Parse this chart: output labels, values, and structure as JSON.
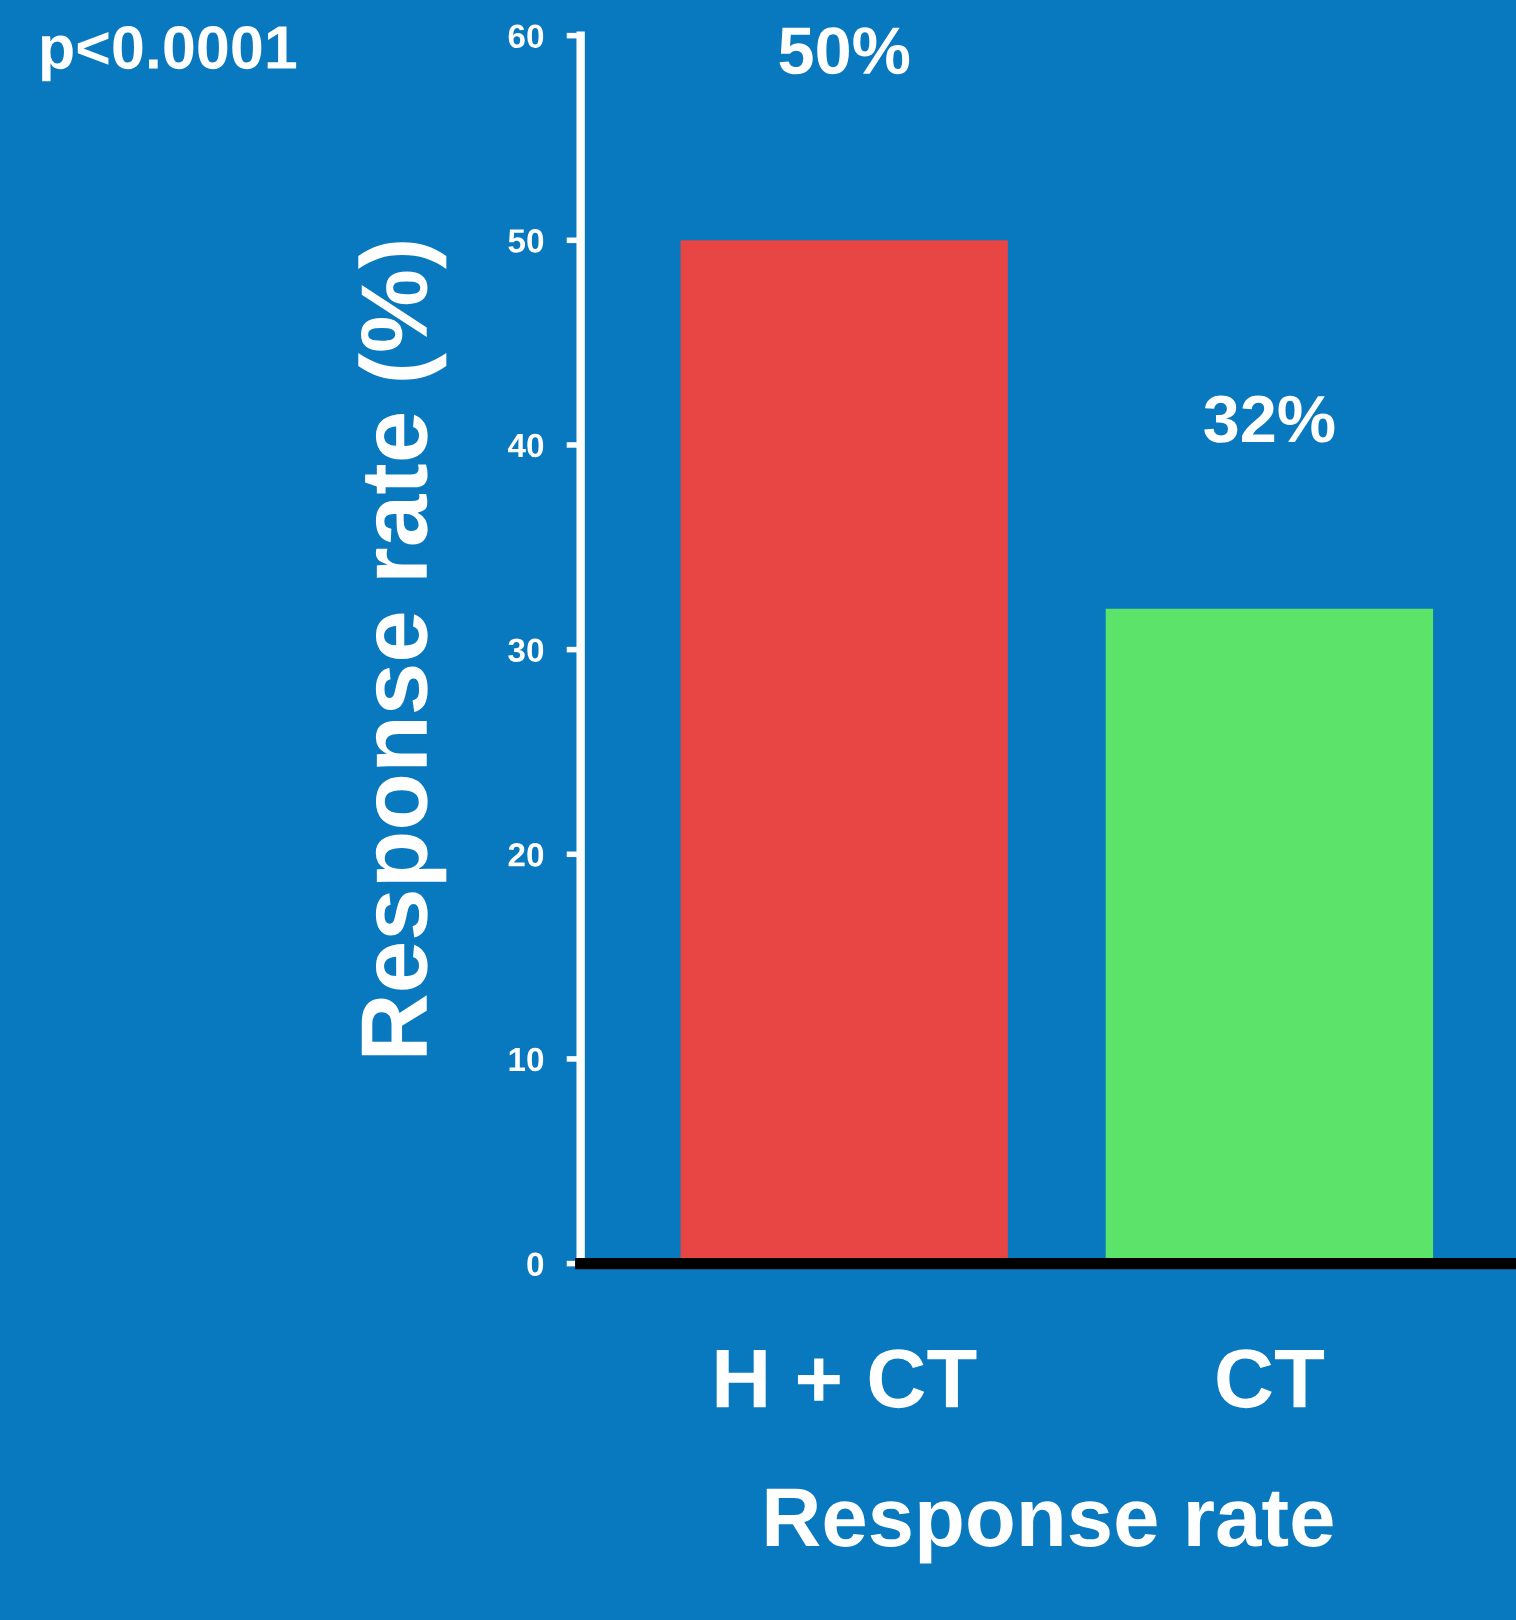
{
  "chart_data": {
    "type": "bar",
    "xlabel": "Response rate",
    "ylabel": "Response rate (%)",
    "categories": [
      "H + CT",
      "CT"
    ],
    "values": [
      50,
      32
    ],
    "colors": [
      "#e84545",
      "#5be36a"
    ],
    "value_labels": [
      "50%",
      "32%"
    ],
    "ylim": [
      0,
      60
    ],
    "yticks": [
      0,
      10,
      20,
      30,
      40,
      50,
      60
    ],
    "grid": false,
    "legend": false,
    "annotations": [
      "p<0.0001"
    ]
  }
}
